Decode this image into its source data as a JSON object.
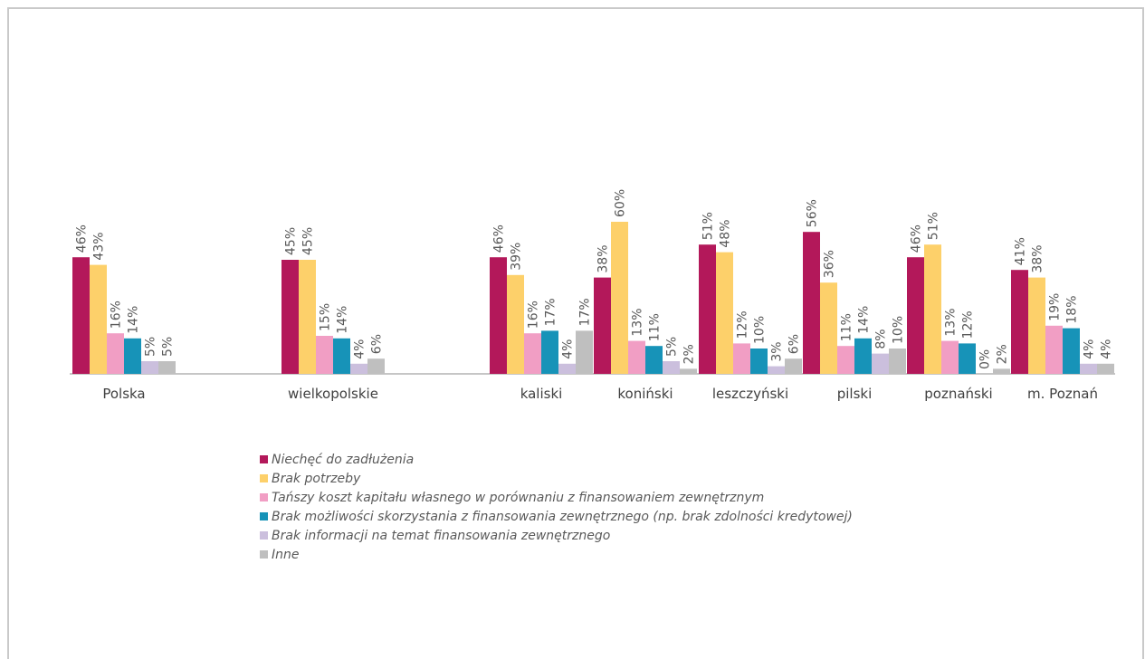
{
  "chart_data": {
    "type": "bar",
    "categories": [
      "Polska",
      "wielkopolskie",
      "kaliski",
      "koniński",
      "leszczyński",
      "pilski",
      "poznański",
      "m. Poznań"
    ],
    "series": [
      {
        "name": "Niechęć do zadłużenia",
        "color": "#b3185a",
        "values": [
          46,
          45,
          46,
          38,
          51,
          56,
          46,
          41
        ]
      },
      {
        "name": "Brak potrzeby",
        "color": "#fdd06a",
        "values": [
          43,
          45,
          39,
          60,
          48,
          36,
          51,
          38
        ]
      },
      {
        "name": "Tańszy koszt kapitału własnego w porównaniu z finansowaniem zewnętrznym",
        "color": "#f19ec4",
        "values": [
          16,
          15,
          16,
          13,
          12,
          11,
          13,
          19
        ]
      },
      {
        "name": "Brak możliwości skorzystania z finansowania zewnętrznego (np. brak zdolności kredytowej)",
        "color": "#1793b8",
        "values": [
          14,
          14,
          17,
          11,
          10,
          14,
          12,
          18
        ]
      },
      {
        "name": "Brak informacji na temat finansowania zewnętrznego",
        "color": "#cbbfdd",
        "values": [
          5,
          4,
          4,
          5,
          3,
          8,
          0,
          4
        ]
      },
      {
        "name": "Inne",
        "color": "#bfbfbf",
        "values": [
          5,
          6,
          17,
          2,
          6,
          10,
          2,
          4
        ]
      }
    ],
    "value_suffix": "%",
    "legend_position": "bottom",
    "grid": false
  }
}
